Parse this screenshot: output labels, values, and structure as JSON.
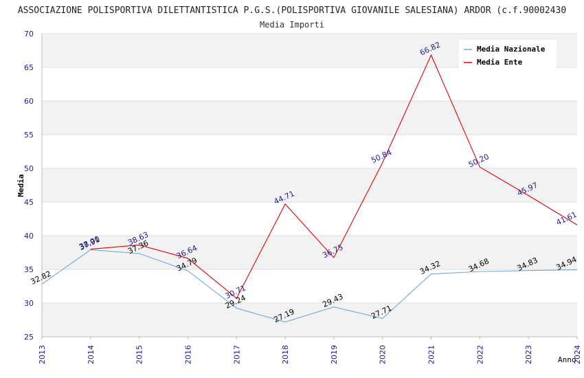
{
  "chart_data": {
    "type": "line",
    "title": "ASSOCIAZIONE POLISPORTIVA DILETTANTISTICA P.G.S.(POLISPORTIVA GIOVANILE SALESIANA) ARDOR (c.f.90002430",
    "subtitle": "Media Importi",
    "xlabel": "Anno",
    "ylabel": "Media",
    "ylim": [
      25,
      70
    ],
    "yticks": [
      25,
      30,
      35,
      40,
      45,
      50,
      55,
      60,
      65,
      70
    ],
    "x": [
      "2013",
      "2014",
      "2015",
      "2016",
      "2017",
      "2018",
      "2019",
      "2020",
      "2021",
      "2022",
      "2023",
      "2024"
    ],
    "legend_position": "top-right",
    "series": [
      {
        "name": "Media Nazionale",
        "color": "#6fa8dc",
        "label_color": "#000000",
        "values": [
          32.82,
          37.91,
          37.36,
          34.79,
          29.24,
          27.19,
          29.43,
          27.71,
          34.32,
          34.68,
          34.83,
          34.94
        ],
        "labels": [
          "32.82",
          "37.91",
          "37.36",
          "34.79",
          "29.24",
          "27.19",
          "29.43",
          "27.71",
          "34.32",
          "34.68",
          "34.83",
          "34.94"
        ]
      },
      {
        "name": "Media Ente",
        "color": "#dd0000",
        "label_color": "#1a1a99",
        "values": [
          null,
          38.0,
          38.63,
          36.64,
          30.71,
          44.71,
          36.75,
          50.84,
          66.82,
          50.2,
          45.97,
          41.61
        ],
        "labels": [
          null,
          "38.00",
          "38.63",
          "36.64",
          "30.71",
          "44.71",
          "36.75",
          "50.84",
          "66.82",
          "50.20",
          "45.97",
          "41.61"
        ]
      }
    ]
  }
}
